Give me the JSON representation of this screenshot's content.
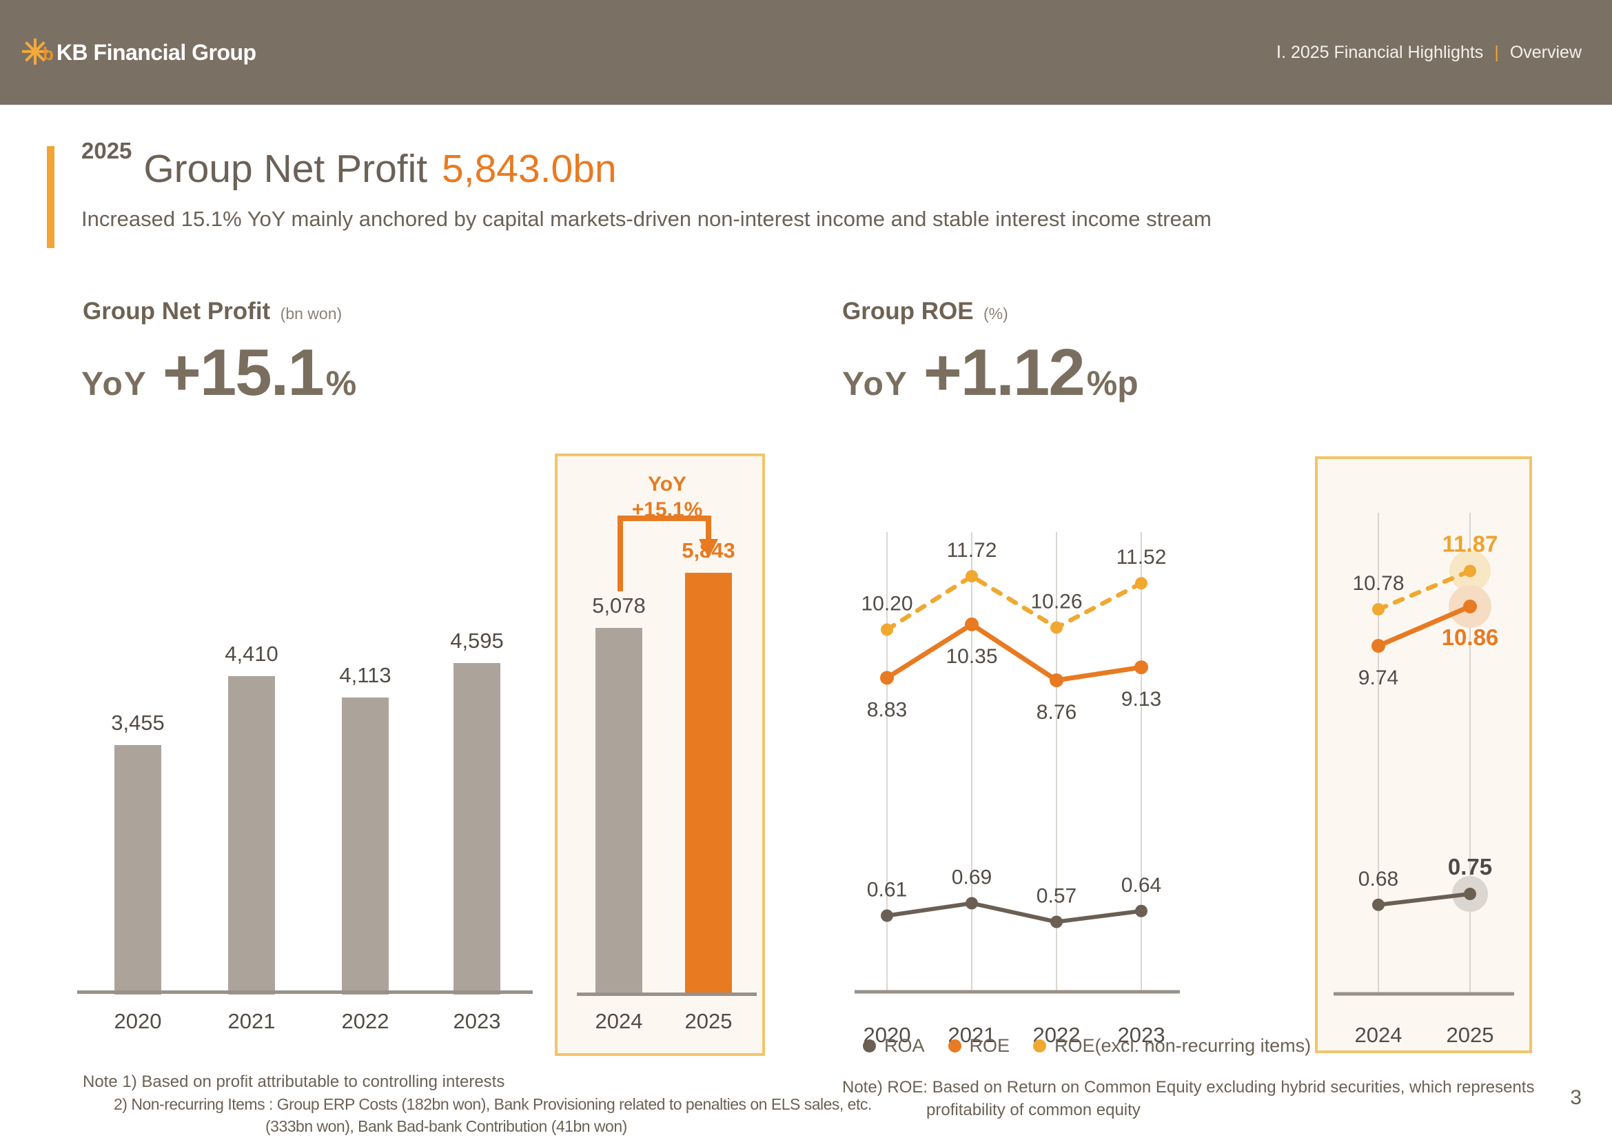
{
  "header": {
    "logo_text": "KB Financial Group",
    "breadcrumb": {
      "section": "Ⅰ. 2025 Financial Highlights",
      "divider": "|",
      "page": "Overview"
    }
  },
  "title": {
    "year": "2025",
    "main": "Group Net Profit",
    "value": "5,843.0bn",
    "subtitle": "Increased 15.1% YoY mainly anchored by capital markets-driven non-interest income and stable interest income stream"
  },
  "left_panel": {
    "heading": "Group Net Profit",
    "unit": "(bn won)",
    "yoy_label": "YoY",
    "yoy_value": "+15.1",
    "yoy_unit": "%"
  },
  "right_panel": {
    "heading": "Group ROE",
    "unit": "(%)",
    "yoy_label": "YoY",
    "yoy_value": "+1.12",
    "yoy_unit": "%p"
  },
  "bar_annotation": {
    "line1": "YoY",
    "line2": "+15.1%"
  },
  "chart_data": [
    {
      "type": "bar",
      "title": "Group Net Profit",
      "ylabel": "bn won",
      "categories": [
        "2020",
        "2021",
        "2022",
        "2023",
        "2024",
        "2025"
      ],
      "values": [
        3455,
        4410,
        4113,
        4595,
        5078,
        5843
      ],
      "value_labels": [
        "3,455",
        "4,410",
        "4,113",
        "4,595",
        "5,078",
        "5,843"
      ],
      "highlight_category": "2025",
      "highlight_box_years": [
        "2024",
        "2025"
      ],
      "annotation": "YoY +15.1%",
      "bar_color_default": "#ACA49B",
      "bar_color_highlight": "#E87A22",
      "ylim": [
        0,
        6200
      ],
      "grid": false
    },
    {
      "type": "line",
      "title": "Group ROE",
      "ylabel": "%",
      "categories": [
        "2020",
        "2021",
        "2022",
        "2023",
        "2024",
        "2025"
      ],
      "series": [
        {
          "name": "ROA",
          "color": "#6B5F53",
          "style": "solid",
          "values": [
            0.61,
            0.69,
            0.57,
            0.64,
            0.68,
            0.75
          ],
          "value_labels": [
            "0.61",
            "0.69",
            "0.57",
            "0.64",
            "0.68",
            "0.75"
          ],
          "label_positions": [
            "above",
            "above",
            "above",
            "above",
            "above",
            "above"
          ]
        },
        {
          "name": "ROE",
          "color": "#E87A22",
          "style": "solid",
          "values": [
            8.83,
            10.35,
            8.76,
            9.13,
            9.74,
            10.86
          ],
          "value_labels": [
            "8.83",
            "10.35",
            "8.76",
            "9.13",
            "9.74",
            "10.86"
          ],
          "label_positions": [
            "below",
            "below",
            "below",
            "below",
            "below",
            "below"
          ]
        },
        {
          "name": "ROE(excl. non-recurring items)",
          "color": "#F0A830",
          "style": "dashed",
          "values": [
            10.2,
            11.72,
            10.26,
            11.52,
            10.78,
            11.87
          ],
          "value_labels": [
            "10.20",
            "11.72",
            "10.26",
            "11.52",
            "10.78",
            "11.87"
          ],
          "label_positions": [
            "above",
            "above",
            "above",
            "above",
            "above",
            "above"
          ]
        }
      ],
      "highlight_box_years": [
        "2024",
        "2025"
      ],
      "legend_position": "bottom",
      "grid": true
    }
  ],
  "notes_left": [
    "Note 1) Based on profit attributable to controlling interests",
    "2) Non-recurring Items : Group ERP Costs (182bn won),  Bank Provisioning related to penalties on ELS sales, etc.",
    "(333bn won), Bank Bad-bank Contribution (41bn won)"
  ],
  "note_right": [
    "Note) ROE: Based on Return on Common Equity excluding hybrid securities, which represents",
    "profitability of common equity"
  ],
  "page_number": "3",
  "colors": {
    "accent_orange": "#E87A22",
    "accent_yellow": "#F0A830",
    "header_bg": "#7B7064",
    "bar_gray": "#ACA49B",
    "text_brown": "#6B6156",
    "value_label": "#524C45",
    "highlight_box_border": "#F2C469",
    "highlight_box_bg": "#FCF8F1",
    "axis_gray": "#97918A"
  }
}
